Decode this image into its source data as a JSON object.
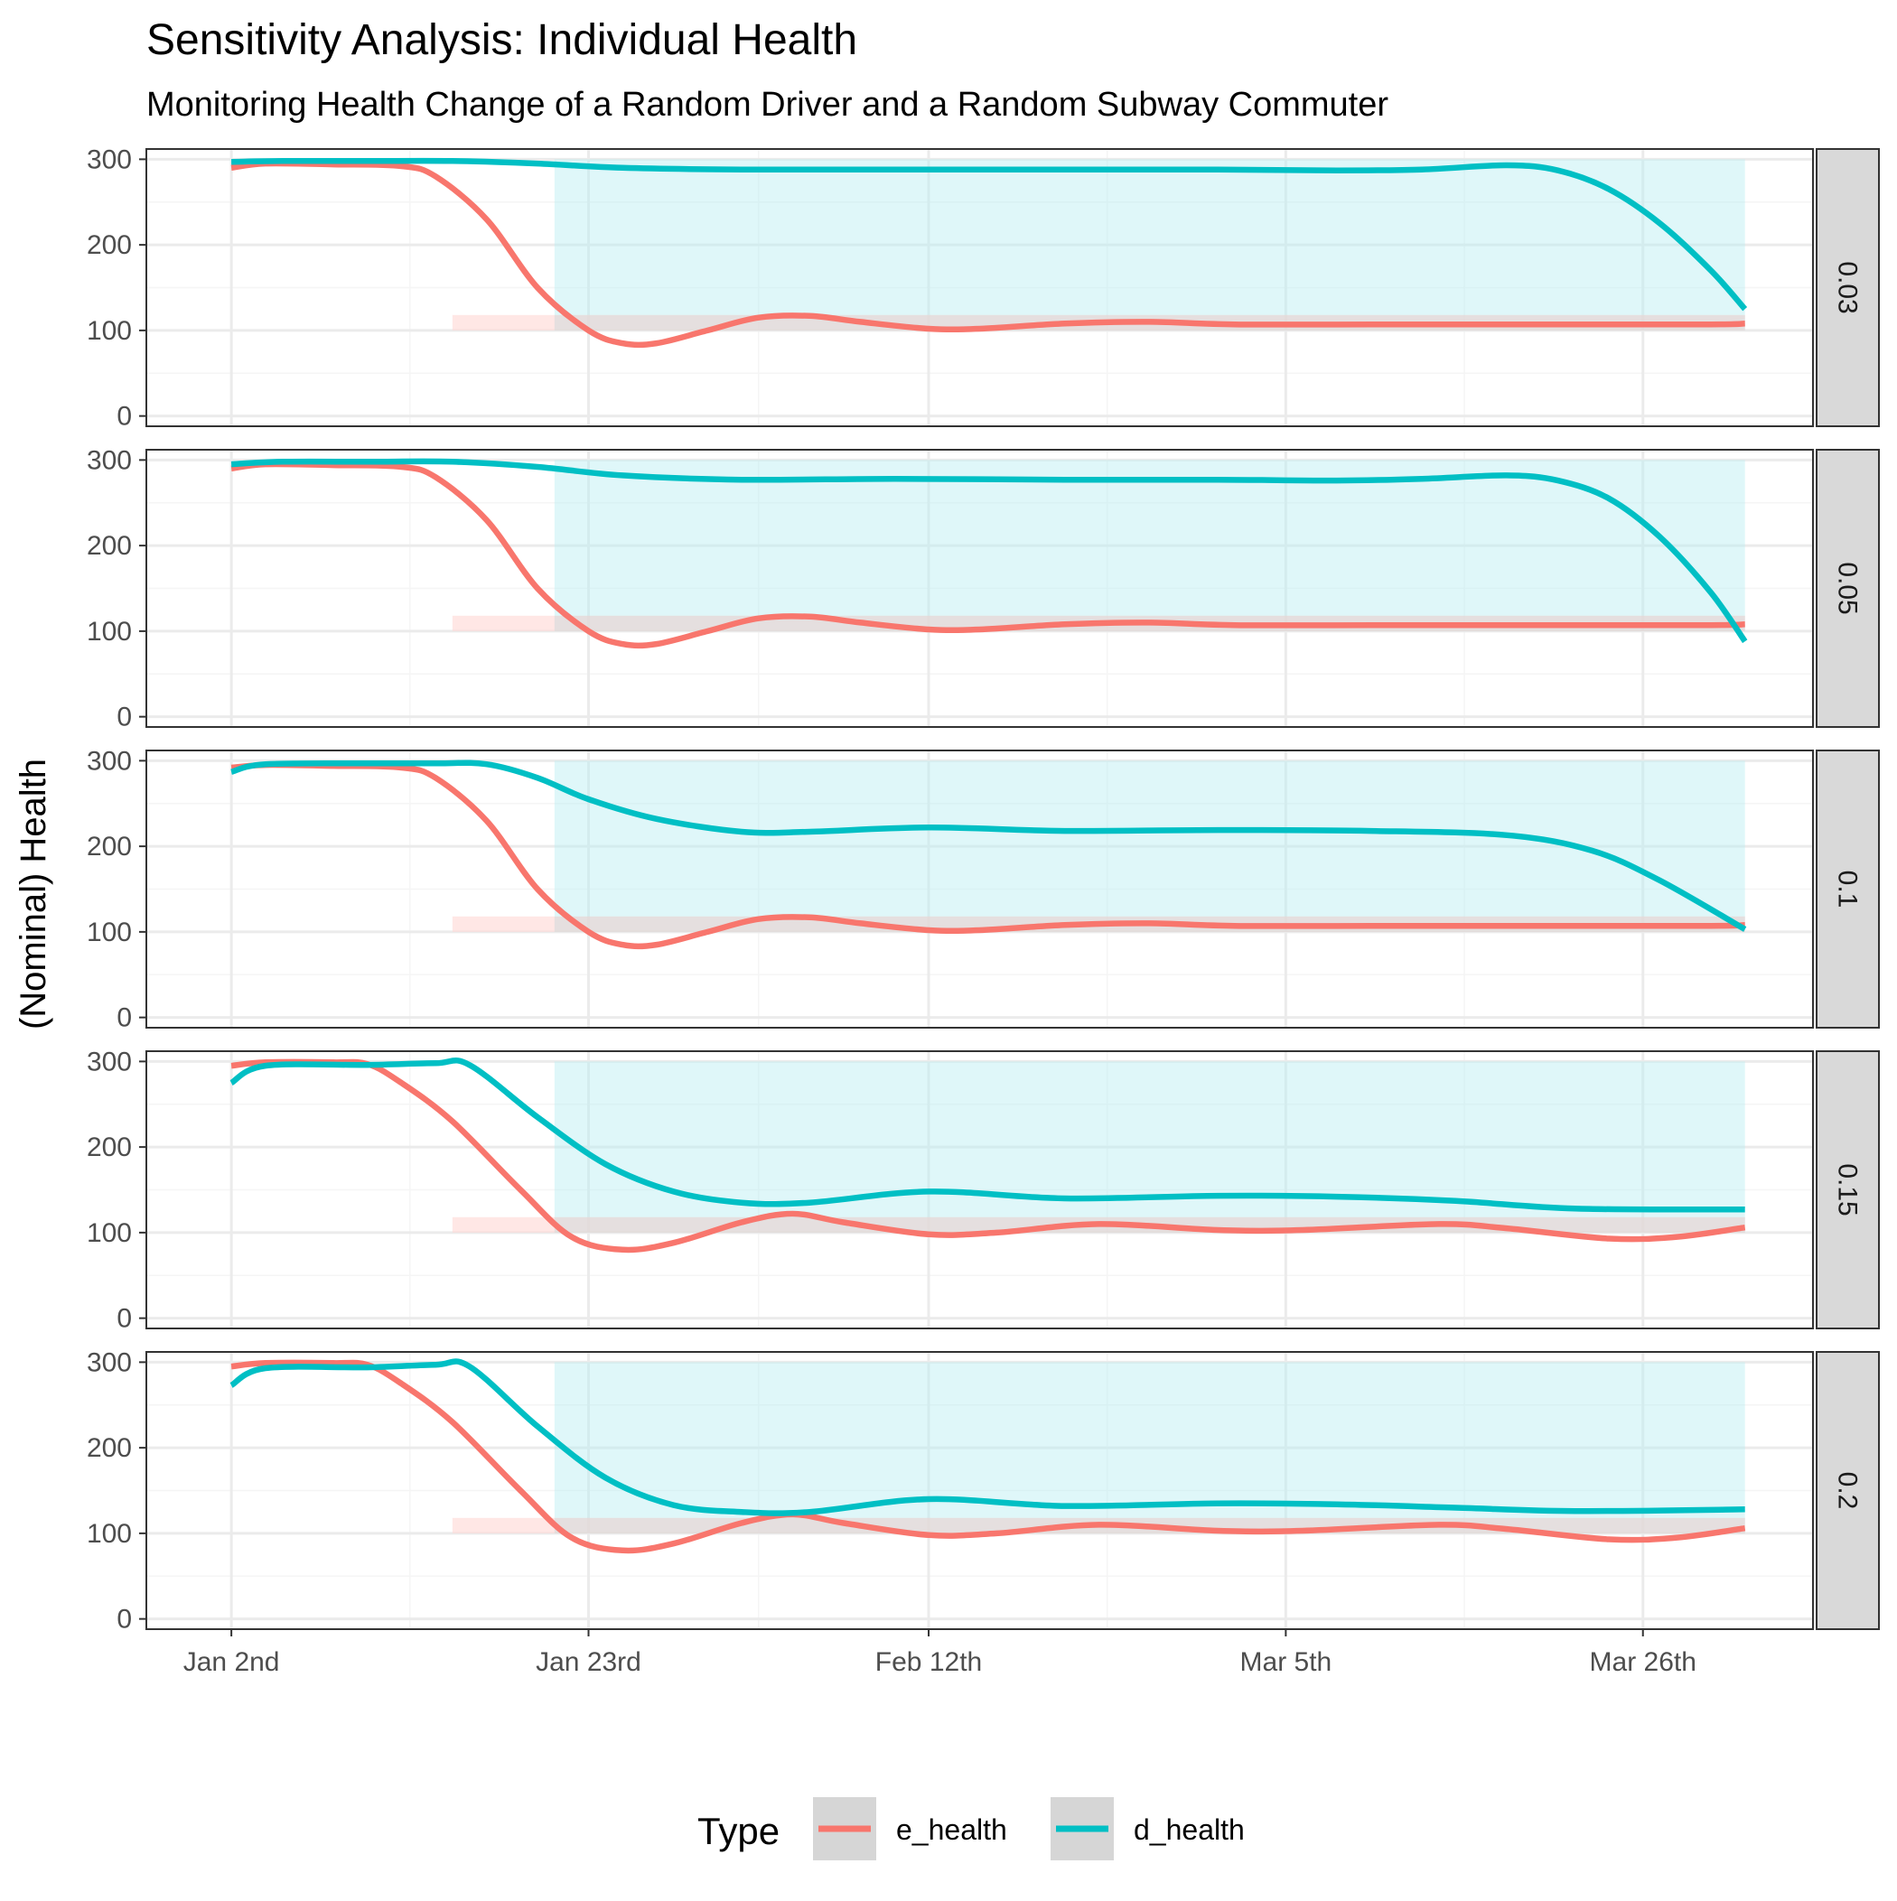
{
  "chart_data": {
    "type": "line",
    "title": "Sensitivity Analysis: Individual Health",
    "subtitle": "Monitoring Health Change of a Random Driver and a Random Subway Commuter",
    "ylabel": "(Nominal) Health",
    "xlabel": "",
    "x_ticks": [
      "Jan 2nd",
      "Jan 23rd",
      "Feb 12th",
      "Mar 5th",
      "Mar 26th"
    ],
    "y_ticks": [
      0,
      100,
      200,
      300
    ],
    "ylim": [
      -12,
      312
    ],
    "xlim": [
      "Dec 28",
      "Apr 5"
    ],
    "grid": true,
    "legend": {
      "title": "Type",
      "position": "bottom",
      "entries": [
        "e_health",
        "d_health"
      ]
    },
    "facets": [
      {
        "label": "0.03",
        "series": [
          {
            "name": "e_health",
            "color": "#F8766D",
            "points": [
              [
                "Jan 2",
                290
              ],
              [
                "Jan 4",
                295
              ],
              [
                "Jan 8",
                294
              ],
              [
                "Jan 12",
                292
              ],
              [
                "Jan 14",
                280
              ],
              [
                "Jan 17",
                230
              ],
              [
                "Jan 20",
                150
              ],
              [
                "Jan 23",
                100
              ],
              [
                "Jan 25",
                85
              ],
              [
                "Jan 27",
                85
              ],
              [
                "Jan 30",
                100
              ],
              [
                "Feb 2",
                115
              ],
              [
                "Feb 5",
                117
              ],
              [
                "Feb 8",
                110
              ],
              [
                "Feb 12",
                102
              ],
              [
                "Feb 15",
                102
              ],
              [
                "Feb 20",
                108
              ],
              [
                "Feb 25",
                110
              ],
              [
                "Mar 2",
                107
              ],
              [
                "Mar 10",
                107
              ],
              [
                "Mar 20",
                107
              ],
              [
                "Mar 30",
                107
              ],
              [
                "Apr 1",
                108
              ]
            ]
          },
          {
            "name": "d_health",
            "color": "#00BFC4",
            "points": [
              [
                "Jan 2",
                297
              ],
              [
                "Jan 5",
                298
              ],
              [
                "Jan 10",
                298
              ],
              [
                "Jan 15",
                298
              ],
              [
                "Jan 20",
                295
              ],
              [
                "Jan 25",
                290
              ],
              [
                "Feb 1",
                288
              ],
              [
                "Feb 10",
                288
              ],
              [
                "Feb 20",
                288
              ],
              [
                "Mar 1",
                288
              ],
              [
                "Mar 8",
                287
              ],
              [
                "Mar 13",
                288
              ],
              [
                "Mar 18",
                293
              ],
              [
                "Mar 21",
                287
              ],
              [
                "Mar 24",
                265
              ],
              [
                "Mar 27",
                225
              ],
              [
                "Mar 30",
                170
              ],
              [
                "Apr 1",
                125
              ]
            ]
          }
        ]
      },
      {
        "label": "0.05",
        "series": [
          {
            "name": "e_health",
            "color": "#F8766D",
            "points": [
              [
                "Jan 2",
                290
              ],
              [
                "Jan 4",
                295
              ],
              [
                "Jan 8",
                294
              ],
              [
                "Jan 12",
                292
              ],
              [
                "Jan 14",
                280
              ],
              [
                "Jan 17",
                230
              ],
              [
                "Jan 20",
                150
              ],
              [
                "Jan 23",
                100
              ],
              [
                "Jan 25",
                85
              ],
              [
                "Jan 27",
                85
              ],
              [
                "Jan 30",
                100
              ],
              [
                "Feb 2",
                115
              ],
              [
                "Feb 5",
                117
              ],
              [
                "Feb 8",
                110
              ],
              [
                "Feb 12",
                102
              ],
              [
                "Feb 15",
                102
              ],
              [
                "Feb 20",
                108
              ],
              [
                "Feb 25",
                110
              ],
              [
                "Mar 2",
                107
              ],
              [
                "Mar 10",
                107
              ],
              [
                "Mar 20",
                107
              ],
              [
                "Mar 30",
                107
              ],
              [
                "Apr 1",
                108
              ]
            ]
          },
          {
            "name": "d_health",
            "color": "#00BFC4",
            "points": [
              [
                "Jan 2",
                295
              ],
              [
                "Jan 5",
                298
              ],
              [
                "Jan 10",
                298
              ],
              [
                "Jan 15",
                298
              ],
              [
                "Jan 20",
                292
              ],
              [
                "Jan 25",
                282
              ],
              [
                "Feb 1",
                277
              ],
              [
                "Feb 10",
                278
              ],
              [
                "Feb 20",
                277
              ],
              [
                "Mar 1",
                277
              ],
              [
                "Mar 8",
                276
              ],
              [
                "Mar 13",
                278
              ],
              [
                "Mar 18",
                282
              ],
              [
                "Mar 21",
                276
              ],
              [
                "Mar 24",
                255
              ],
              [
                "Mar 27",
                210
              ],
              [
                "Mar 30",
                145
              ],
              [
                "Apr 1",
                88
              ]
            ]
          }
        ]
      },
      {
        "label": "0.1",
        "series": [
          {
            "name": "e_health",
            "color": "#F8766D",
            "points": [
              [
                "Jan 2",
                292
              ],
              [
                "Jan 4",
                295
              ],
              [
                "Jan 8",
                294
              ],
              [
                "Jan 12",
                292
              ],
              [
                "Jan 14",
                280
              ],
              [
                "Jan 17",
                230
              ],
              [
                "Jan 20",
                150
              ],
              [
                "Jan 23",
                100
              ],
              [
                "Jan 25",
                85
              ],
              [
                "Jan 27",
                85
              ],
              [
                "Jan 30",
                100
              ],
              [
                "Feb 2",
                115
              ],
              [
                "Feb 5",
                117
              ],
              [
                "Feb 8",
                110
              ],
              [
                "Feb 12",
                102
              ],
              [
                "Feb 15",
                102
              ],
              [
                "Feb 20",
                108
              ],
              [
                "Feb 25",
                110
              ],
              [
                "Mar 2",
                107
              ],
              [
                "Mar 10",
                107
              ],
              [
                "Mar 20",
                107
              ],
              [
                "Mar 30",
                107
              ],
              [
                "Apr 1",
                108
              ]
            ]
          },
          {
            "name": "d_health",
            "color": "#00BFC4",
            "points": [
              [
                "Jan 2",
                287
              ],
              [
                "Jan 4",
                296
              ],
              [
                "Jan 10",
                297
              ],
              [
                "Jan 14",
                297
              ],
              [
                "Jan 17",
                296
              ],
              [
                "Jan 20",
                280
              ],
              [
                "Jan 23",
                255
              ],
              [
                "Jan 27",
                232
              ],
              [
                "Feb 1",
                217
              ],
              [
                "Feb 5",
                217
              ],
              [
                "Feb 12",
                222
              ],
              [
                "Feb 20",
                218
              ],
              [
                "Mar 1",
                219
              ],
              [
                "Mar 10",
                218
              ],
              [
                "Mar 18",
                213
              ],
              [
                "Mar 23",
                195
              ],
              [
                "Mar 27",
                160
              ],
              [
                "Apr 1",
                103
              ]
            ]
          }
        ]
      },
      {
        "label": "0.15",
        "series": [
          {
            "name": "e_health",
            "color": "#F8766D",
            "points": [
              [
                "Jan 2",
                295
              ],
              [
                "Jan 4",
                299
              ],
              [
                "Jan 8",
                299
              ],
              [
                "Jan 10",
                297
              ],
              [
                "Jan 12",
                275
              ],
              [
                "Jan 15",
                230
              ],
              [
                "Jan 19",
                150
              ],
              [
                "Jan 22",
                95
              ],
              [
                "Jan 25",
                80
              ],
              [
                "Jan 28",
                88
              ],
              [
                "Feb 1",
                112
              ],
              [
                "Feb 4",
                122
              ],
              [
                "Feb 7",
                112
              ],
              [
                "Feb 12",
                98
              ],
              [
                "Feb 16",
                100
              ],
              [
                "Feb 22",
                110
              ],
              [
                "Mar 1",
                103
              ],
              [
                "Mar 6",
                103
              ],
              [
                "Mar 14",
                110
              ],
              [
                "Mar 18",
                105
              ],
              [
                "Mar 24",
                93
              ],
              [
                "Mar 28",
                95
              ],
              [
                "Apr 1",
                106
              ]
            ]
          },
          {
            "name": "d_health",
            "color": "#00BFC4",
            "points": [
              [
                "Jan 2",
                275
              ],
              [
                "Jan 4",
                295
              ],
              [
                "Jan 10",
                296
              ],
              [
                "Jan 14",
                298
              ],
              [
                "Jan 16",
                296
              ],
              [
                "Jan 20",
                235
              ],
              [
                "Jan 24",
                180
              ],
              [
                "Jan 28",
                148
              ],
              [
                "Feb 1",
                135
              ],
              [
                "Feb 5",
                135
              ],
              [
                "Feb 12",
                148
              ],
              [
                "Feb 20",
                140
              ],
              [
                "Mar 1",
                143
              ],
              [
                "Mar 8",
                142
              ],
              [
                "Mar 15",
                137
              ],
              [
                "Mar 22",
                128
              ],
              [
                "Apr 1",
                127
              ]
            ]
          }
        ]
      },
      {
        "label": "0.2",
        "series": [
          {
            "name": "e_health",
            "color": "#F8766D",
            "points": [
              [
                "Jan 2",
                295
              ],
              [
                "Jan 4",
                299
              ],
              [
                "Jan 8",
                299
              ],
              [
                "Jan 10",
                297
              ],
              [
                "Jan 12",
                275
              ],
              [
                "Jan 15",
                230
              ],
              [
                "Jan 19",
                150
              ],
              [
                "Jan 22",
                95
              ],
              [
                "Jan 25",
                80
              ],
              [
                "Jan 28",
                88
              ],
              [
                "Feb 1",
                112
              ],
              [
                "Feb 4",
                122
              ],
              [
                "Feb 7",
                112
              ],
              [
                "Feb 12",
                98
              ],
              [
                "Feb 16",
                100
              ],
              [
                "Feb 22",
                110
              ],
              [
                "Mar 1",
                103
              ],
              [
                "Mar 6",
                103
              ],
              [
                "Mar 14",
                110
              ],
              [
                "Mar 18",
                105
              ],
              [
                "Mar 24",
                93
              ],
              [
                "Mar 28",
                95
              ],
              [
                "Apr 1",
                106
              ]
            ]
          },
          {
            "name": "d_health",
            "color": "#00BFC4",
            "points": [
              [
                "Jan 2",
                273
              ],
              [
                "Jan 4",
                293
              ],
              [
                "Jan 10",
                294
              ],
              [
                "Jan 14",
                297
              ],
              [
                "Jan 16",
                295
              ],
              [
                "Jan 20",
                225
              ],
              [
                "Jan 24",
                165
              ],
              [
                "Jan 28",
                133
              ],
              [
                "Feb 1",
                125
              ],
              [
                "Feb 5",
                125
              ],
              [
                "Feb 12",
                140
              ],
              [
                "Feb 20",
                132
              ],
              [
                "Mar 1",
                135
              ],
              [
                "Mar 8",
                134
              ],
              [
                "Mar 15",
                130
              ],
              [
                "Mar 22",
                126
              ],
              [
                "Apr 1",
                128
              ]
            ]
          }
        ]
      }
    ]
  },
  "colors": {
    "e_health": "#F8766D",
    "d_health": "#00BFC4",
    "d_band": "#B8EEF1",
    "e_band": "#FFD7D3",
    "strip_fill": "#D9D9D9",
    "grid_major": "#EBEBEB",
    "grid_minor": "#F5F5F5"
  }
}
